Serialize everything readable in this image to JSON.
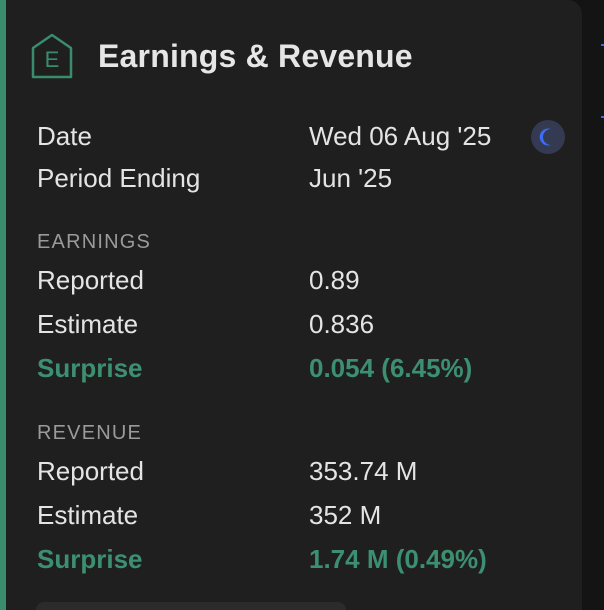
{
  "card": {
    "title": "Earnings & Revenue",
    "logo_letter": "E",
    "accent_color": "#3a8c6f",
    "date_label": "Date",
    "date_value": "Wed 06 Aug '25",
    "date_icon": "moon-icon",
    "period_label": "Period Ending",
    "period_value": "Jun '25"
  },
  "earnings": {
    "section_title": "EARNINGS",
    "reported_label": "Reported",
    "reported_value": "0.89",
    "estimate_label": "Estimate",
    "estimate_value": "0.836",
    "surprise_label": "Surprise",
    "surprise_value": "0.054 (6.45%)"
  },
  "revenue": {
    "section_title": "REVENUE",
    "reported_label": "Reported",
    "reported_value": "353.74 M",
    "estimate_label": "Estimate",
    "estimate_value": "352 M",
    "surprise_label": "Surprise",
    "surprise_value": "1.74 M (0.49%)"
  }
}
